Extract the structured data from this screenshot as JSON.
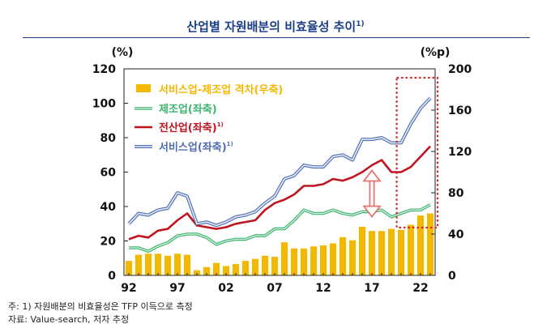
{
  "title": "산업별 자원배분의 비효율성 추이",
  "title_note": "1)",
  "chart_data": {
    "type": "line",
    "x_start": 1992,
    "x": [
      1992,
      1993,
      1994,
      1995,
      1996,
      1997,
      1998,
      1999,
      2000,
      2001,
      2002,
      2003,
      2004,
      2005,
      2006,
      2007,
      2008,
      2009,
      2010,
      2011,
      2012,
      2013,
      2014,
      2015,
      2016,
      2017,
      2018,
      2019,
      2020,
      2021,
      2022,
      2023
    ],
    "xtick_values": [
      1992,
      1997,
      2002,
      2007,
      2012,
      2017,
      2022
    ],
    "xtick_labels": [
      "92",
      "97",
      "02",
      "07",
      "12",
      "17",
      "22"
    ],
    "left_axis": {
      "unit": "(%)",
      "ylim": [
        0,
        120
      ],
      "ticks": [
        0,
        20,
        40,
        60,
        80,
        100,
        120
      ]
    },
    "right_axis": {
      "unit": "(%p)",
      "ylim": [
        0,
        200
      ],
      "ticks": [
        0,
        40,
        80,
        120,
        160,
        200
      ]
    },
    "series": [
      {
        "name": "서비스업-제조업 격차(우축)",
        "note": "",
        "type": "bar",
        "axis": "right",
        "color": "#f5b800",
        "values": [
          14,
          20,
          21,
          21,
          19,
          21,
          20,
          5,
          8,
          12,
          9,
          11,
          14,
          16,
          19,
          18,
          32,
          26,
          26,
          28,
          29,
          31,
          37,
          34,
          47,
          43,
          43,
          45,
          44,
          49,
          58,
          60
        ]
      },
      {
        "name": "제조업(좌축)",
        "note": "",
        "type": "line",
        "axis": "left",
        "color": "#3cb46e",
        "values": [
          16,
          16,
          14,
          17,
          19,
          23,
          24,
          24,
          22,
          18,
          20,
          21,
          21,
          23,
          23,
          27,
          27,
          32,
          38,
          36,
          36,
          38,
          36,
          35,
          37,
          37,
          38,
          34,
          36,
          38,
          38,
          41
        ]
      },
      {
        "name": "전산업(좌축)",
        "note": "1)",
        "type": "line",
        "axis": "left",
        "color": "#c0141e",
        "values": [
          21,
          23,
          22,
          26,
          27,
          32,
          36,
          29,
          28,
          27,
          28,
          30,
          31,
          32,
          38,
          42,
          44,
          47,
          52,
          52,
          53,
          56,
          55,
          57,
          60,
          64,
          67,
          60,
          60,
          63,
          69,
          75
        ]
      },
      {
        "name": "서비스업(좌축)",
        "note": "1)",
        "type": "line",
        "axis": "left",
        "color": "#6f8cc6",
        "values": [
          30,
          36,
          35,
          38,
          39,
          48,
          46,
          30,
          31,
          29,
          31,
          34,
          35,
          37,
          42,
          46,
          56,
          58,
          64,
          63,
          63,
          69,
          70,
          67,
          79,
          79,
          80,
          77,
          77,
          88,
          97,
          103
        ]
      }
    ],
    "annotations": [
      "double-arrow near 2017",
      "dotted box over 2020-2023"
    ]
  },
  "footnotes": [
    "주: 1) 자원배분의 비효율성은 TFP 이득으로 측정",
    "자료: Value-search, 저자 추정"
  ]
}
